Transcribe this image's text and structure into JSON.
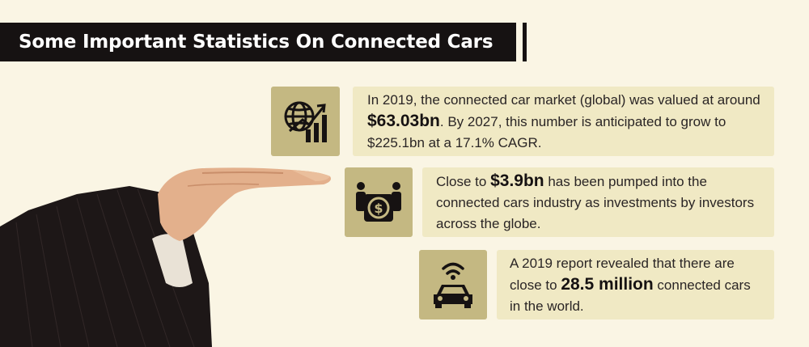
{
  "title": "Some Important Statistics On Connected Cars",
  "stats": [
    {
      "icon": "globe-growth-chart-icon",
      "before": "In 2019, the connected car market (global) was valued at around ",
      "highlight": "$63.03bn",
      "after": ". By 2027, this number is anticipated to grow to $225.1bn at a 17.1% CAGR."
    },
    {
      "icon": "investors-dollar-icon",
      "before": "Close to ",
      "highlight": "$3.9bn",
      "after": " has been pumped into the connected cars industry as investments by investors across the globe."
    },
    {
      "icon": "connected-car-icon",
      "before": "A 2019 report revealed that there are close to ",
      "highlight": "28.5 million",
      "after": " connected cars in the world."
    }
  ],
  "colors": {
    "background": "#faf5e4",
    "title_bar": "#161212",
    "icon_box": "#c4b882",
    "text_box": "#f0e9c4"
  }
}
